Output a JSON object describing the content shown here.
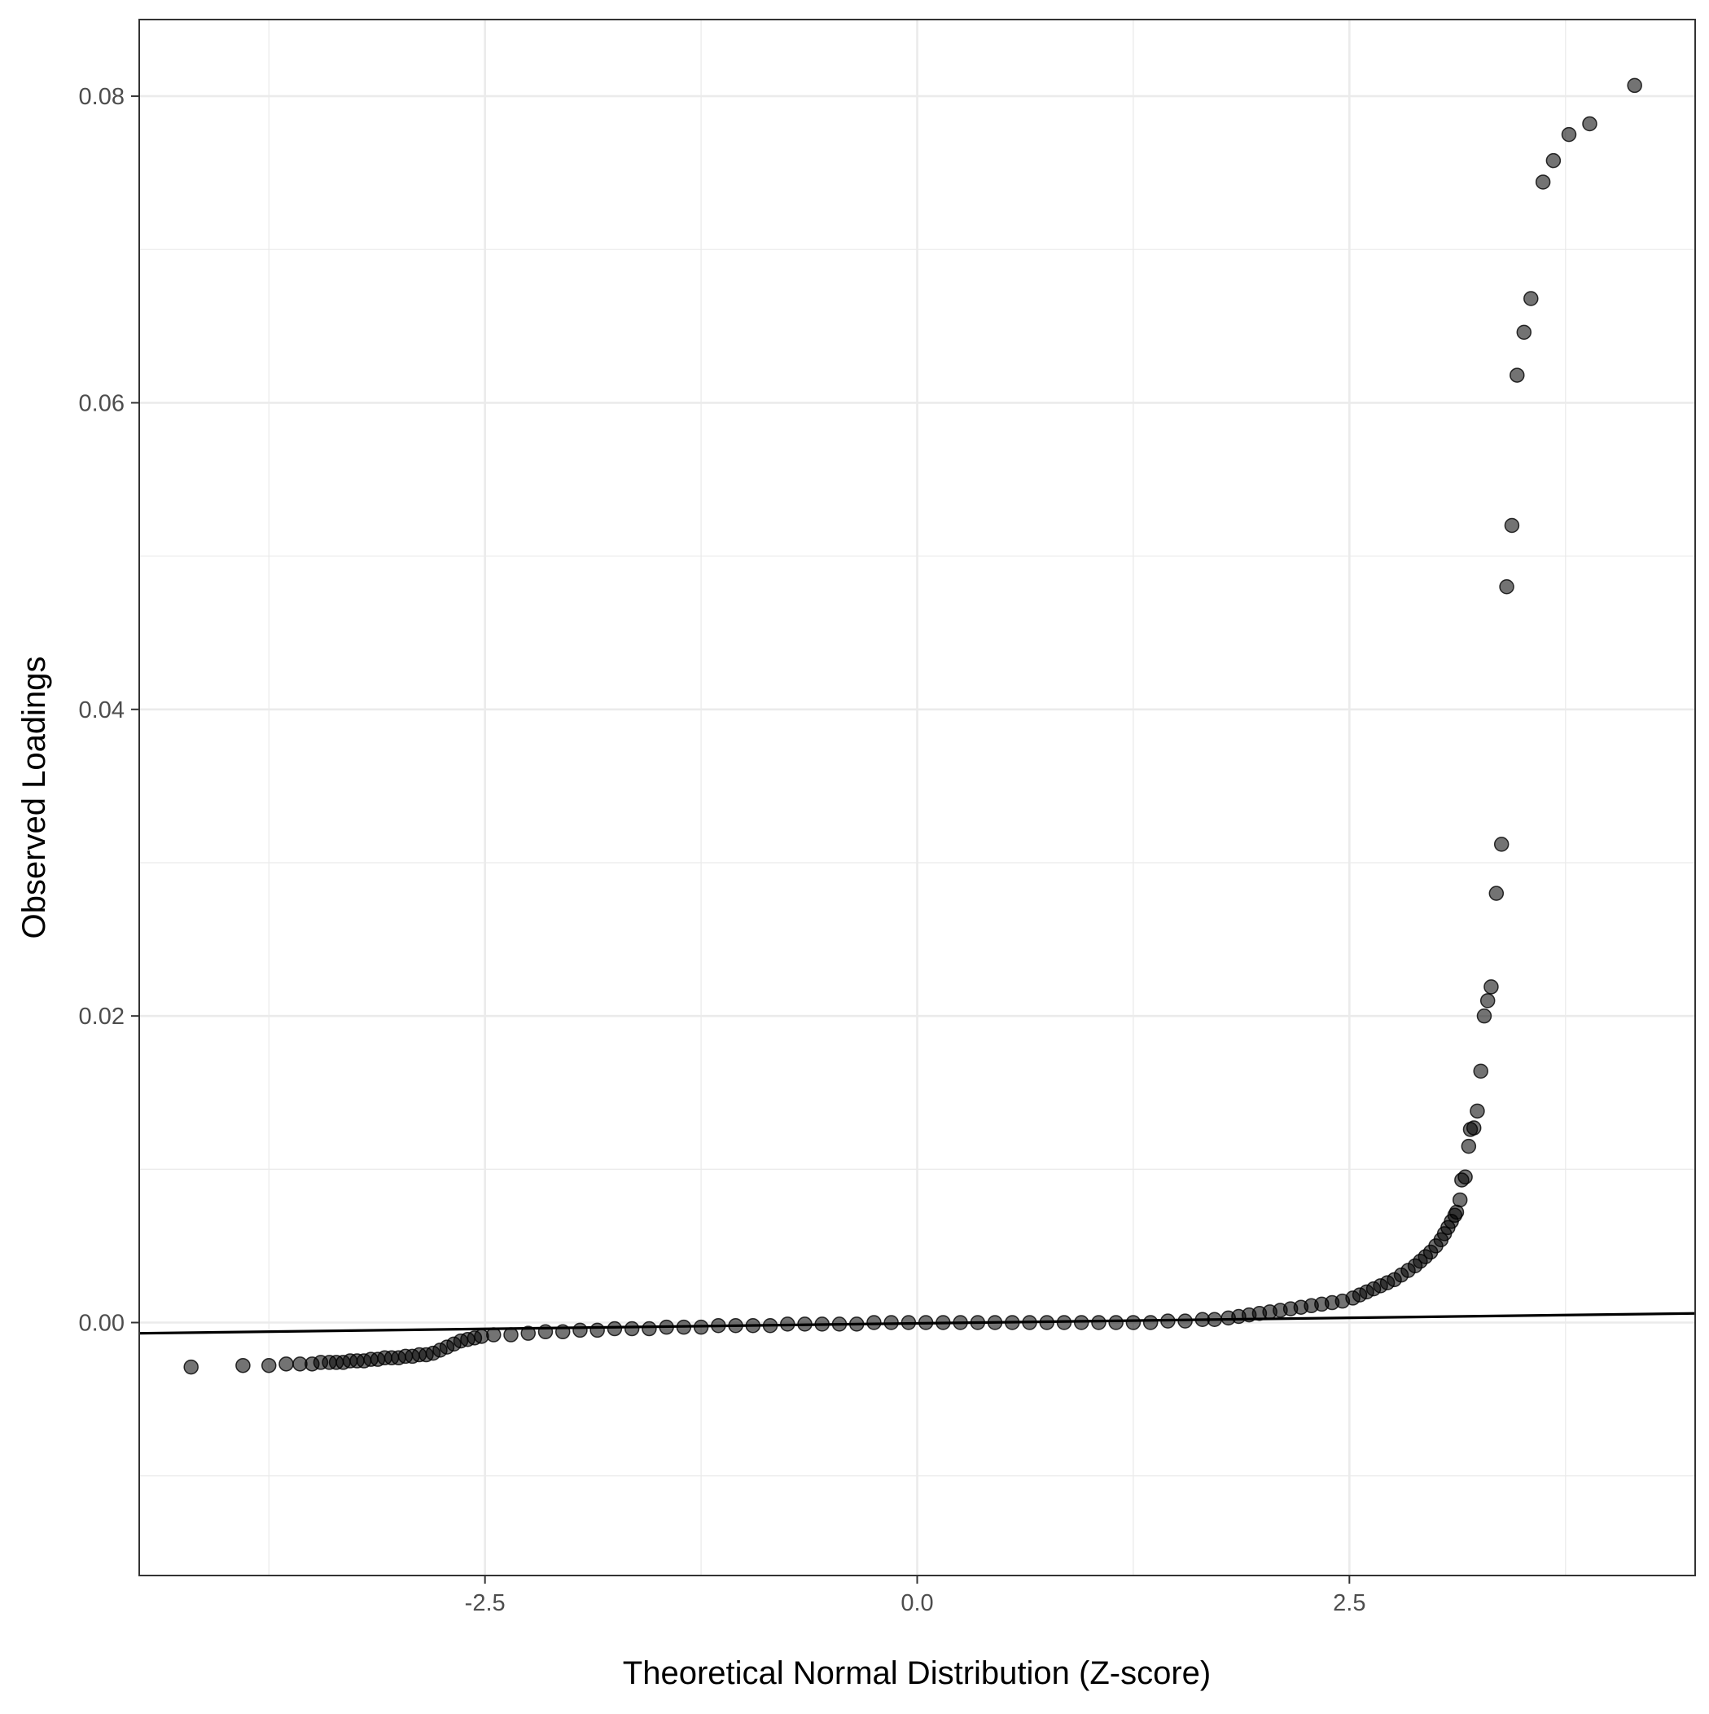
{
  "chart_data": {
    "type": "scatter",
    "title": "",
    "xlabel": "Theoretical Normal Distribution (Z-score)",
    "ylabel": "Observed Loadings",
    "xlim": [
      -4.5,
      4.5
    ],
    "ylim": [
      -0.0165,
      0.085
    ],
    "x_ticks": [
      -2.5,
      0.0,
      2.5
    ],
    "x_tick_labels": [
      "-2.5",
      "0.0",
      "2.5"
    ],
    "y_ticks": [
      0.0,
      0.02,
      0.04,
      0.06,
      0.08
    ],
    "y_tick_labels": [
      "0.00",
      "0.02",
      "0.04",
      "0.06",
      "0.08"
    ],
    "grid": true,
    "reference_line": {
      "x": [
        -4.5,
        4.5
      ],
      "y": [
        -0.0007,
        0.0006
      ],
      "color": "#000000"
    },
    "point_color": "#000000",
    "point_opacity": 0.55,
    "series": [
      {
        "points": [
          [
            -4.2,
            -0.0029
          ],
          [
            -3.9,
            -0.0028
          ],
          [
            -3.75,
            -0.0028
          ],
          [
            -3.65,
            -0.0027
          ],
          [
            -3.57,
            -0.0027
          ],
          [
            -3.5,
            -0.0027
          ],
          [
            -3.45,
            -0.0026
          ],
          [
            -3.4,
            -0.0026
          ],
          [
            -3.36,
            -0.0026
          ],
          [
            -3.32,
            -0.0026
          ],
          [
            -3.28,
            -0.0025
          ],
          [
            -3.24,
            -0.0025
          ],
          [
            -3.2,
            -0.0025
          ],
          [
            -3.16,
            -0.0024
          ],
          [
            -3.12,
            -0.0024
          ],
          [
            -3.08,
            -0.0023
          ],
          [
            -3.04,
            -0.0023
          ],
          [
            -3.0,
            -0.0023
          ],
          [
            -2.96,
            -0.0022
          ],
          [
            -2.92,
            -0.0022
          ],
          [
            -2.88,
            -0.0021
          ],
          [
            -2.84,
            -0.0021
          ],
          [
            -2.8,
            -0.002
          ],
          [
            -2.76,
            -0.0018
          ],
          [
            -2.72,
            -0.0016
          ],
          [
            -2.68,
            -0.0014
          ],
          [
            -2.64,
            -0.0012
          ],
          [
            -2.6,
            -0.0011
          ],
          [
            -2.56,
            -0.001
          ],
          [
            -2.52,
            -0.0009
          ],
          [
            -2.45,
            -0.0008
          ],
          [
            -2.35,
            -0.0008
          ],
          [
            -2.25,
            -0.0007
          ],
          [
            -2.15,
            -0.0006
          ],
          [
            -2.05,
            -0.0006
          ],
          [
            -1.95,
            -0.0005
          ],
          [
            -1.85,
            -0.0005
          ],
          [
            -1.75,
            -0.0004
          ],
          [
            -1.65,
            -0.0004
          ],
          [
            -1.55,
            -0.0004
          ],
          [
            -1.45,
            -0.0003
          ],
          [
            -1.35,
            -0.0003
          ],
          [
            -1.25,
            -0.0003
          ],
          [
            -1.15,
            -0.0002
          ],
          [
            -1.05,
            -0.0002
          ],
          [
            -0.95,
            -0.0002
          ],
          [
            -0.85,
            -0.0002
          ],
          [
            -0.75,
            -0.0001
          ],
          [
            -0.65,
            -0.0001
          ],
          [
            -0.55,
            -0.0001
          ],
          [
            -0.45,
            -0.0001
          ],
          [
            -0.35,
            -0.0001
          ],
          [
            -0.25,
            0.0
          ],
          [
            -0.15,
            0.0
          ],
          [
            -0.05,
            0.0
          ],
          [
            0.05,
            0.0
          ],
          [
            0.15,
            0.0
          ],
          [
            0.25,
            0.0
          ],
          [
            0.35,
            0.0
          ],
          [
            0.45,
            0.0
          ],
          [
            0.55,
            0.0
          ],
          [
            0.65,
            0.0
          ],
          [
            0.75,
            0.0
          ],
          [
            0.85,
            0.0
          ],
          [
            0.95,
            0.0
          ],
          [
            1.05,
            0.0
          ],
          [
            1.15,
            0.0
          ],
          [
            1.25,
            0.0
          ],
          [
            1.35,
            0.0
          ],
          [
            1.45,
            0.0001
          ],
          [
            1.55,
            0.0001
          ],
          [
            1.65,
            0.0002
          ],
          [
            1.72,
            0.0002
          ],
          [
            1.8,
            0.0003
          ],
          [
            1.86,
            0.0004
          ],
          [
            1.92,
            0.0005
          ],
          [
            1.98,
            0.0006
          ],
          [
            2.04,
            0.0007
          ],
          [
            2.1,
            0.0008
          ],
          [
            2.16,
            0.0009
          ],
          [
            2.22,
            0.001
          ],
          [
            2.28,
            0.0011
          ],
          [
            2.34,
            0.0012
          ],
          [
            2.4,
            0.0013
          ],
          [
            2.46,
            0.0014
          ],
          [
            2.52,
            0.0016
          ],
          [
            2.56,
            0.0018
          ],
          [
            2.6,
            0.002
          ],
          [
            2.64,
            0.0022
          ],
          [
            2.68,
            0.0024
          ],
          [
            2.72,
            0.0026
          ],
          [
            2.76,
            0.0028
          ],
          [
            2.8,
            0.0031
          ],
          [
            2.84,
            0.0034
          ],
          [
            2.88,
            0.0037
          ],
          [
            2.91,
            0.004
          ],
          [
            2.94,
            0.0043
          ],
          [
            2.97,
            0.0046
          ],
          [
            3.0,
            0.005
          ],
          [
            3.03,
            0.0054
          ],
          [
            3.05,
            0.0058
          ],
          [
            3.07,
            0.0062
          ],
          [
            3.09,
            0.0066
          ],
          [
            3.11,
            0.007
          ],
          [
            3.12,
            0.0072
          ],
          [
            3.14,
            0.008
          ],
          [
            3.15,
            0.0093
          ],
          [
            3.17,
            0.0095
          ],
          [
            3.19,
            0.0115
          ],
          [
            3.2,
            0.0126
          ],
          [
            3.22,
            0.0127
          ],
          [
            3.24,
            0.0138
          ],
          [
            3.26,
            0.0164
          ],
          [
            3.28,
            0.02
          ],
          [
            3.3,
            0.021
          ],
          [
            3.32,
            0.0219
          ],
          [
            3.35,
            0.028
          ],
          [
            3.38,
            0.0312
          ],
          [
            3.41,
            0.048
          ],
          [
            3.44,
            0.052
          ],
          [
            3.47,
            0.0618
          ],
          [
            3.51,
            0.0646
          ],
          [
            3.55,
            0.0668
          ],
          [
            3.62,
            0.0744
          ],
          [
            3.68,
            0.0758
          ],
          [
            3.77,
            0.0775
          ],
          [
            3.89,
            0.0782
          ],
          [
            4.15,
            0.0807
          ]
        ]
      }
    ]
  }
}
